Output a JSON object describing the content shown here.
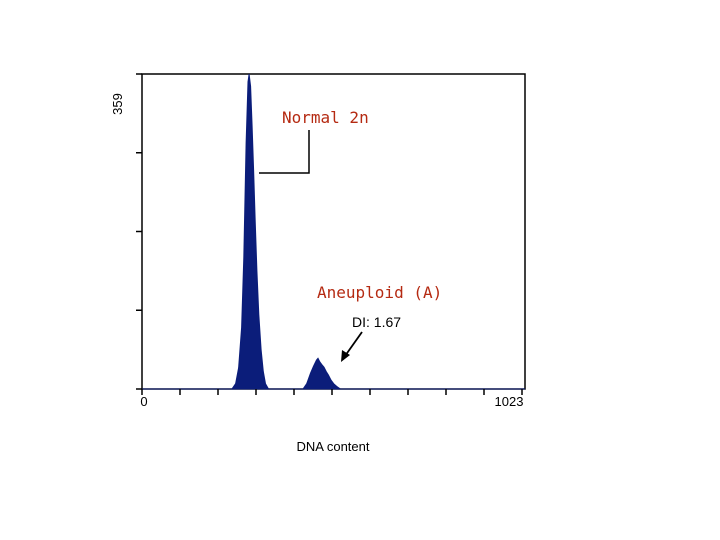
{
  "chart_data": {
    "type": "area",
    "title": "",
    "xlabel": "DNA content",
    "ylabel": "",
    "xlim": [
      0,
      1023
    ],
    "ylim": [
      0,
      359
    ],
    "x_tick_labels": [
      "0",
      "1023"
    ],
    "y_tick_labels": [
      "359"
    ],
    "fill_color": "#0b1d7a",
    "series": [
      {
        "points": [
          [
            0,
            0
          ],
          [
            240,
            0
          ],
          [
            250,
            6
          ],
          [
            258,
            24
          ],
          [
            266,
            70
          ],
          [
            272,
            150
          ],
          [
            278,
            280
          ],
          [
            283,
            350
          ],
          [
            286,
            359
          ],
          [
            290,
            345
          ],
          [
            294,
            300
          ],
          [
            298,
            250
          ],
          [
            302,
            195
          ],
          [
            307,
            135
          ],
          [
            312,
            85
          ],
          [
            318,
            45
          ],
          [
            324,
            20
          ],
          [
            330,
            6
          ],
          [
            338,
            0
          ],
          [
            430,
            0
          ],
          [
            440,
            6
          ],
          [
            450,
            18
          ],
          [
            458,
            26
          ],
          [
            466,
            33
          ],
          [
            470,
            35
          ],
          [
            475,
            31
          ],
          [
            480,
            28
          ],
          [
            486,
            25
          ],
          [
            492,
            20
          ],
          [
            498,
            16
          ],
          [
            505,
            10
          ],
          [
            512,
            6
          ],
          [
            520,
            3
          ],
          [
            530,
            0
          ],
          [
            1023,
            0
          ]
        ]
      }
    ],
    "annotations": [
      {
        "text": "Normal 2n",
        "target_x": 289,
        "target_y": 247
      },
      {
        "text": "Aneuploid (A)"
      },
      {
        "text": "DI: 1.67",
        "target_x": 493,
        "target_y": 33
      }
    ]
  }
}
